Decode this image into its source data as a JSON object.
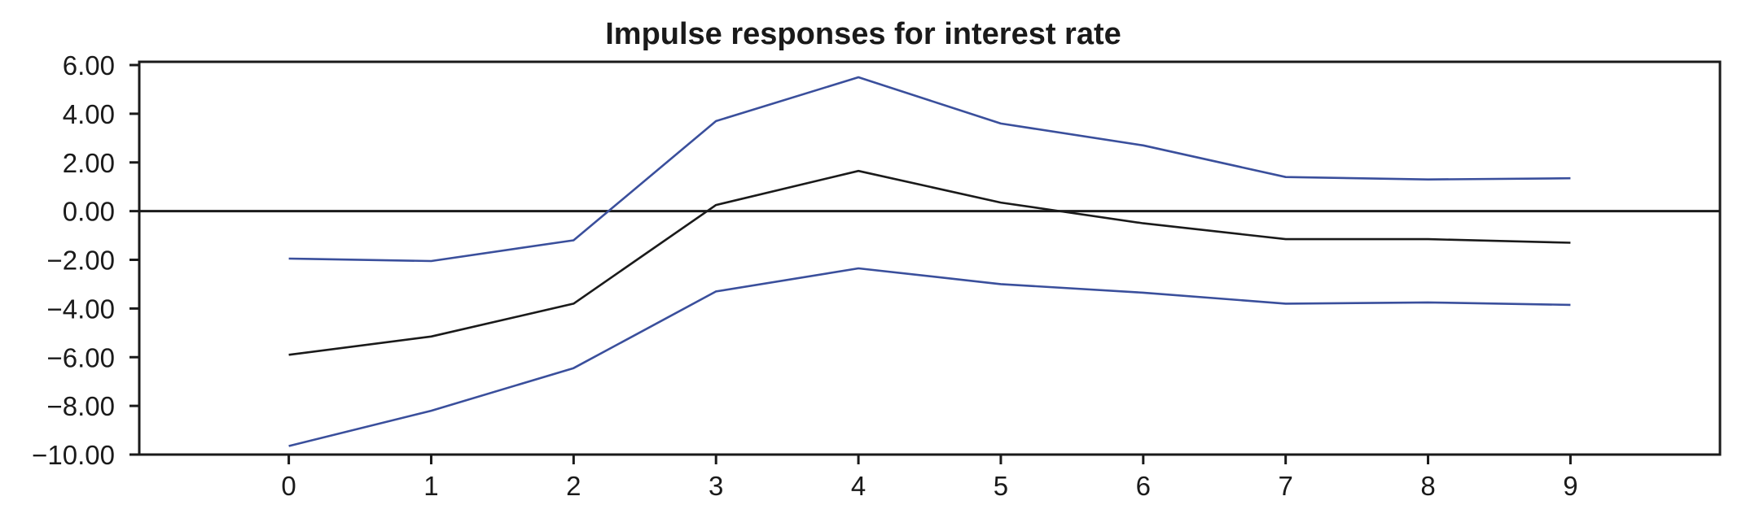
{
  "chart_data": {
    "type": "line",
    "title": "Impulse responses for interest rate",
    "xlabel": "",
    "ylabel": "",
    "x": [
      0,
      1,
      2,
      3,
      4,
      5,
      6,
      7,
      8,
      9
    ],
    "x_tick_labels": [
      "0",
      "1",
      "2",
      "3",
      "4",
      "5",
      "6",
      "7",
      "8",
      "9"
    ],
    "xlim": [
      -1.05,
      10.05
    ],
    "ylim": [
      -10,
      6
    ],
    "y_ticks": [
      6,
      4,
      2,
      0,
      -2,
      -4,
      -6,
      -8,
      -10
    ],
    "y_tick_labels": [
      "6.00",
      "4.00",
      "2.00",
      "0.00",
      "−2.00",
      "−4.00",
      "−6.00",
      "−8.00",
      "−10.00"
    ],
    "grid": false,
    "zero_line": true,
    "series": [
      {
        "role": "upper",
        "color": "#3a4f9c",
        "values": [
          -1.95,
          -2.05,
          -1.2,
          3.7,
          5.5,
          3.6,
          2.7,
          1.4,
          1.3,
          1.35
        ]
      },
      {
        "role": "estimate",
        "color": "#1a1a1a",
        "values": [
          -5.9,
          -5.15,
          -3.8,
          0.25,
          1.65,
          0.35,
          -0.5,
          -1.15,
          -1.15,
          -1.3
        ]
      },
      {
        "role": "lower",
        "color": "#3a4f9c",
        "values": [
          -9.65,
          -8.2,
          -6.45,
          -3.3,
          -2.35,
          -3.0,
          -3.35,
          -3.8,
          -3.75,
          -3.85
        ]
      }
    ]
  }
}
